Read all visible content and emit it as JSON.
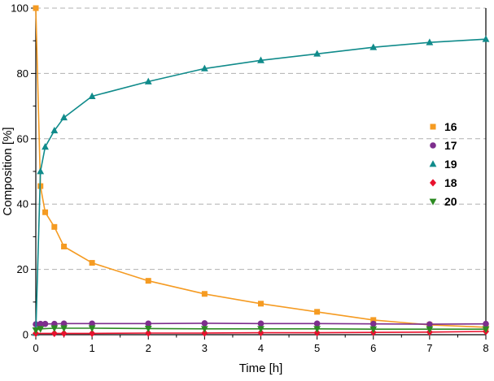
{
  "chart_data": {
    "type": "scatter",
    "title": "",
    "xlabel": "Time [h]",
    "ylabel": "Composition [%]",
    "xlim": [
      0,
      8
    ],
    "ylim": [
      0,
      100
    ],
    "x_ticks": [
      0,
      1,
      2,
      3,
      4,
      5,
      6,
      7,
      8
    ],
    "y_ticks": [
      0,
      20,
      40,
      60,
      80,
      100
    ],
    "x_minor_step": 0.5,
    "y_minor_step": 10,
    "grid": "horizontal-dashed",
    "legend_position": "right-middle",
    "series": [
      {
        "name": "16",
        "marker": "square",
        "color": "#F59B22",
        "points": [
          [
            0,
            100
          ],
          [
            0.083,
            45.5
          ],
          [
            0.167,
            37.5
          ],
          [
            0.33,
            33
          ],
          [
            0.5,
            27
          ],
          [
            1,
            22
          ],
          [
            2,
            16.5
          ],
          [
            3,
            12.5
          ],
          [
            4,
            9.5
          ],
          [
            5,
            7
          ],
          [
            6,
            4.5
          ],
          [
            7,
            3
          ],
          [
            8,
            2.3
          ]
        ]
      },
      {
        "name": "17",
        "marker": "circle",
        "color": "#7D2E8D",
        "points": [
          [
            0,
            3.2
          ],
          [
            0.083,
            3.3
          ],
          [
            0.167,
            3.3
          ],
          [
            0.33,
            3.3
          ],
          [
            0.5,
            3.4
          ],
          [
            1,
            3.4
          ],
          [
            2,
            3.4
          ],
          [
            3,
            3.5
          ],
          [
            4,
            3.4
          ],
          [
            5,
            3.4
          ],
          [
            6,
            3.3
          ],
          [
            7,
            3.2
          ],
          [
            8,
            3.3
          ]
        ]
      },
      {
        "name": "19",
        "marker": "triangle-up",
        "color": "#108B8B",
        "points": [
          [
            0,
            0.5
          ],
          [
            0.083,
            50
          ],
          [
            0.167,
            57.5
          ],
          [
            0.33,
            62.5
          ],
          [
            0.5,
            66.5
          ],
          [
            1,
            73
          ],
          [
            2,
            77.5
          ],
          [
            3,
            81.5
          ],
          [
            4,
            84
          ],
          [
            5,
            86
          ],
          [
            6,
            88
          ],
          [
            7,
            89.5
          ],
          [
            8,
            90.5
          ]
        ]
      },
      {
        "name": "18",
        "marker": "diamond",
        "color": "#E8112D",
        "points": [
          [
            0,
            0.4
          ],
          [
            0.33,
            0.4
          ],
          [
            0.5,
            0.4
          ],
          [
            1,
            0.4
          ],
          [
            2,
            0.5
          ],
          [
            3,
            0.5
          ],
          [
            4,
            0.6
          ],
          [
            5,
            0.6
          ],
          [
            6,
            0.7
          ],
          [
            7,
            0.8
          ],
          [
            8,
            1.0
          ]
        ]
      },
      {
        "name": "20",
        "marker": "triangle-down",
        "color": "#2C8A22",
        "points": [
          [
            0,
            1.4
          ],
          [
            0.083,
            1.8
          ],
          [
            0.33,
            2.0
          ],
          [
            0.5,
            2.0
          ],
          [
            1,
            2.0
          ],
          [
            2,
            1.9
          ],
          [
            3,
            1.8
          ],
          [
            4,
            1.8
          ],
          [
            5,
            1.8
          ],
          [
            6,
            1.7
          ],
          [
            7,
            1.7
          ],
          [
            8,
            1.7
          ]
        ]
      }
    ]
  }
}
